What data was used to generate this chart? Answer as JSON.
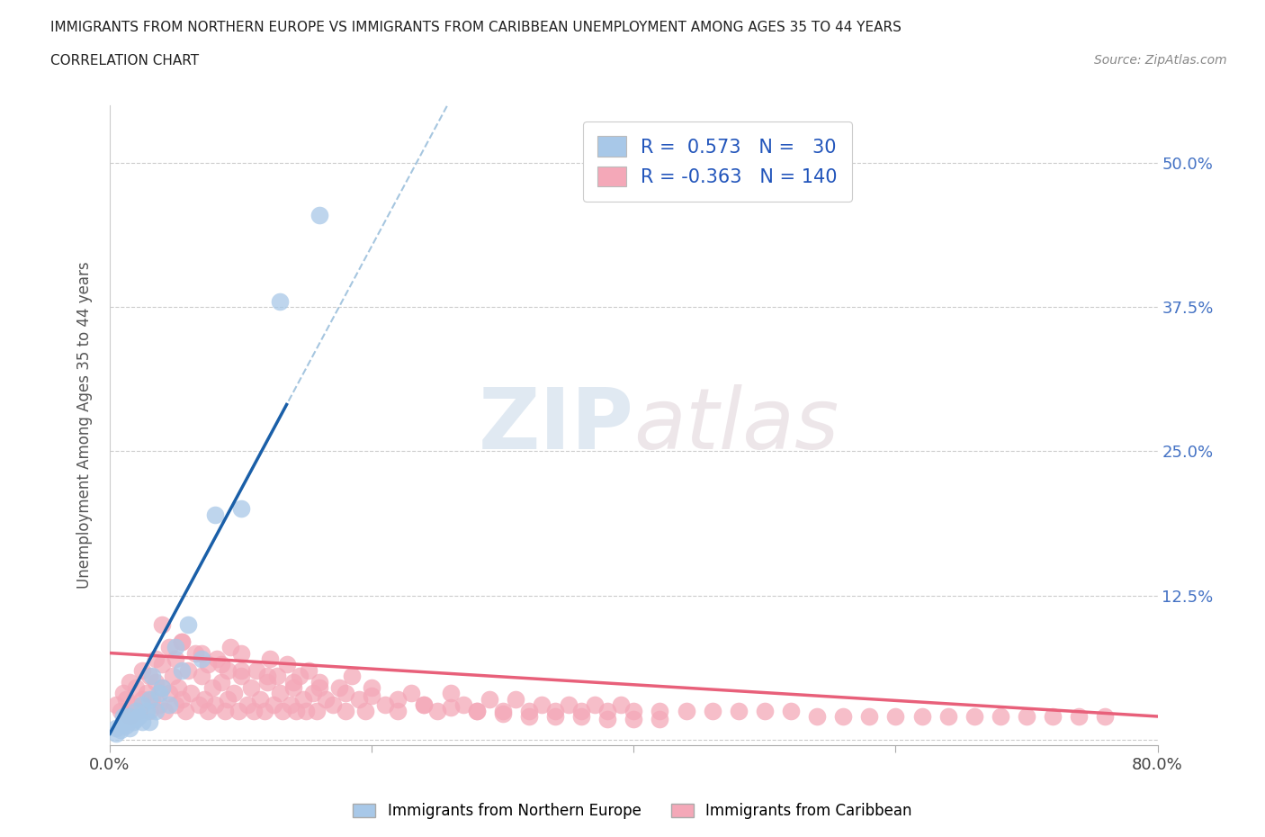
{
  "title_line1": "IMMIGRANTS FROM NORTHERN EUROPE VS IMMIGRANTS FROM CARIBBEAN UNEMPLOYMENT AMONG AGES 35 TO 44 YEARS",
  "title_line2": "CORRELATION CHART",
  "source_text": "Source: ZipAtlas.com",
  "ylabel": "Unemployment Among Ages 35 to 44 years",
  "xlim": [
    0.0,
    0.8
  ],
  "ylim": [
    -0.005,
    0.55
  ],
  "ytick_positions": [
    0.0,
    0.125,
    0.25,
    0.375,
    0.5
  ],
  "ytick_labels": [
    "",
    "12.5%",
    "25.0%",
    "37.5%",
    "50.0%"
  ],
  "r_blue": 0.573,
  "n_blue": 30,
  "r_pink": -0.363,
  "n_pink": 140,
  "blue_color": "#a8c8e8",
  "pink_color": "#f4a8b8",
  "blue_line_color": "#1a5fa8",
  "pink_line_color": "#e8607a",
  "watermark_zip": "ZIP",
  "watermark_atlas": "atlas",
  "legend_label_blue": "Immigrants from Northern Europe",
  "legend_label_pink": "Immigrants from Caribbean",
  "blue_scatter_x": [
    0.005,
    0.005,
    0.008,
    0.01,
    0.01,
    0.012,
    0.015,
    0.015,
    0.018,
    0.02,
    0.02,
    0.022,
    0.025,
    0.025,
    0.028,
    0.03,
    0.03,
    0.032,
    0.035,
    0.038,
    0.04,
    0.045,
    0.05,
    0.055,
    0.06,
    0.07,
    0.08,
    0.1,
    0.13,
    0.16
  ],
  "blue_scatter_y": [
    0.005,
    0.01,
    0.008,
    0.015,
    0.02,
    0.012,
    0.01,
    0.02,
    0.015,
    0.018,
    0.025,
    0.02,
    0.015,
    0.03,
    0.025,
    0.015,
    0.035,
    0.055,
    0.025,
    0.04,
    0.045,
    0.03,
    0.08,
    0.06,
    0.1,
    0.07,
    0.195,
    0.2,
    0.38,
    0.455
  ],
  "pink_scatter_x": [
    0.005,
    0.008,
    0.01,
    0.012,
    0.015,
    0.015,
    0.018,
    0.02,
    0.022,
    0.025,
    0.025,
    0.028,
    0.03,
    0.03,
    0.032,
    0.035,
    0.035,
    0.038,
    0.04,
    0.04,
    0.042,
    0.045,
    0.045,
    0.048,
    0.05,
    0.05,
    0.052,
    0.055,
    0.055,
    0.058,
    0.06,
    0.062,
    0.065,
    0.068,
    0.07,
    0.072,
    0.075,
    0.075,
    0.078,
    0.08,
    0.082,
    0.085,
    0.088,
    0.09,
    0.09,
    0.092,
    0.095,
    0.098,
    0.1,
    0.1,
    0.105,
    0.108,
    0.11,
    0.112,
    0.115,
    0.118,
    0.12,
    0.122,
    0.125,
    0.128,
    0.13,
    0.132,
    0.135,
    0.138,
    0.14,
    0.142,
    0.145,
    0.148,
    0.15,
    0.152,
    0.155,
    0.158,
    0.16,
    0.165,
    0.17,
    0.175,
    0.18,
    0.185,
    0.19,
    0.195,
    0.2,
    0.21,
    0.22,
    0.23,
    0.24,
    0.25,
    0.26,
    0.27,
    0.28,
    0.29,
    0.3,
    0.31,
    0.32,
    0.33,
    0.34,
    0.35,
    0.36,
    0.37,
    0.38,
    0.39,
    0.4,
    0.42,
    0.44,
    0.46,
    0.48,
    0.5,
    0.52,
    0.54,
    0.56,
    0.58,
    0.6,
    0.62,
    0.64,
    0.66,
    0.68,
    0.7,
    0.72,
    0.74,
    0.76,
    0.04,
    0.055,
    0.07,
    0.085,
    0.1,
    0.12,
    0.14,
    0.16,
    0.18,
    0.2,
    0.22,
    0.24,
    0.26,
    0.28,
    0.3,
    0.32,
    0.34,
    0.36,
    0.38,
    0.4,
    0.42
  ],
  "pink_scatter_y": [
    0.03,
    0.025,
    0.04,
    0.035,
    0.02,
    0.05,
    0.03,
    0.045,
    0.025,
    0.035,
    0.06,
    0.04,
    0.025,
    0.055,
    0.035,
    0.05,
    0.07,
    0.03,
    0.045,
    0.065,
    0.025,
    0.04,
    0.08,
    0.055,
    0.03,
    0.07,
    0.045,
    0.035,
    0.085,
    0.025,
    0.06,
    0.04,
    0.075,
    0.03,
    0.055,
    0.035,
    0.025,
    0.065,
    0.045,
    0.03,
    0.07,
    0.05,
    0.025,
    0.06,
    0.035,
    0.08,
    0.04,
    0.025,
    0.055,
    0.075,
    0.03,
    0.045,
    0.025,
    0.06,
    0.035,
    0.025,
    0.05,
    0.07,
    0.03,
    0.055,
    0.04,
    0.025,
    0.065,
    0.03,
    0.045,
    0.025,
    0.055,
    0.035,
    0.025,
    0.06,
    0.04,
    0.025,
    0.05,
    0.035,
    0.03,
    0.045,
    0.025,
    0.055,
    0.035,
    0.025,
    0.045,
    0.03,
    0.025,
    0.04,
    0.03,
    0.025,
    0.04,
    0.03,
    0.025,
    0.035,
    0.025,
    0.035,
    0.025,
    0.03,
    0.025,
    0.03,
    0.025,
    0.03,
    0.025,
    0.03,
    0.025,
    0.025,
    0.025,
    0.025,
    0.025,
    0.025,
    0.025,
    0.02,
    0.02,
    0.02,
    0.02,
    0.02,
    0.02,
    0.02,
    0.02,
    0.02,
    0.02,
    0.02,
    0.02,
    0.1,
    0.085,
    0.075,
    0.065,
    0.06,
    0.055,
    0.05,
    0.045,
    0.04,
    0.038,
    0.035,
    0.03,
    0.028,
    0.025,
    0.022,
    0.02,
    0.02,
    0.02,
    0.018,
    0.018,
    0.018
  ]
}
